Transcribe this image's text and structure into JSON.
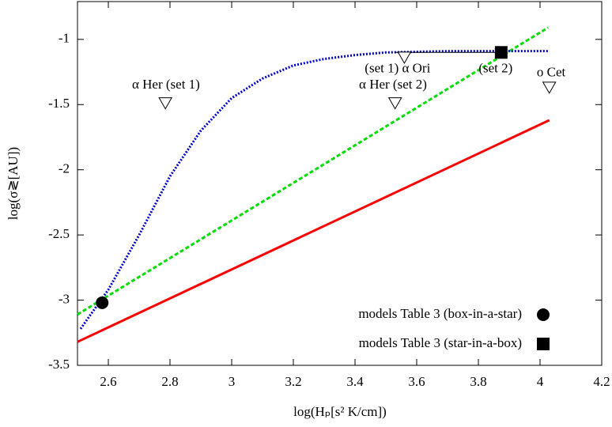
{
  "chart_data": {
    "type": "line",
    "x_label": "log(Hₚ[s² K/cm])",
    "y_label": "log(σ≷[AU])",
    "xlim": [
      2.5,
      4.2
    ],
    "xticks": [
      2.6,
      2.8,
      3,
      3.2,
      3.4,
      3.6,
      3.8,
      4,
      4.2
    ],
    "ylim": [
      -3.5,
      -0.71
    ],
    "yticks": [
      -3.5,
      -3,
      -2.5,
      -2,
      -1.5,
      -1
    ],
    "series": [
      {
        "color": "#ff0000",
        "style": "solid",
        "x": [
          2.5,
          4.03
        ],
        "values": [
          -3.32,
          -1.62
        ]
      },
      {
        "color": "#00dd00",
        "style": "dashed",
        "x": [
          2.5,
          4.026
        ],
        "values": [
          -3.11,
          -0.91
        ]
      },
      {
        "color": "#0000cc",
        "style": "dotted",
        "x": [
          2.51,
          2.6,
          2.7,
          2.8,
          2.9,
          3.0,
          3.1,
          3.2,
          3.3,
          3.4,
          3.5,
          3.7,
          3.9,
          4.03
        ],
        "values": [
          -3.22,
          -2.92,
          -2.5,
          -2.05,
          -1.7,
          -1.45,
          -1.3,
          -1.2,
          -1.15,
          -1.12,
          -1.1,
          -1.09,
          -1.09,
          -1.09
        ]
      }
    ],
    "points": [
      {
        "name": "models Table 3 (box-in-a-star)",
        "marker": "circle",
        "color": "#000000",
        "x": [
          2.58
        ],
        "values": [
          -3.02
        ]
      },
      {
        "name": "models Table 3 (star-in-a-box)",
        "marker": "square",
        "color": "#000000",
        "x": [
          3.874
        ],
        "values": [
          -1.1
        ]
      }
    ],
    "triangles": {
      "x": [
        2.785,
        3.56,
        3.53,
        4.03
      ],
      "values": [
        -1.49,
        -1.14,
        -1.49,
        -1.37
      ]
    },
    "annotations": [
      {
        "text": "α Her (set 1)",
        "x": 2.787,
        "y": -1.352
      },
      {
        "text": "(set 1) α Ori",
        "x": 3.538,
        "y": -1.23
      },
      {
        "text": "(set 2)",
        "x": 3.856,
        "y": -1.23
      },
      {
        "text": "α Her (set 2)",
        "x": 3.523,
        "y": -1.352
      },
      {
        "text": "o Cet",
        "x": 4.036,
        "y": -1.26
      }
    ]
  }
}
